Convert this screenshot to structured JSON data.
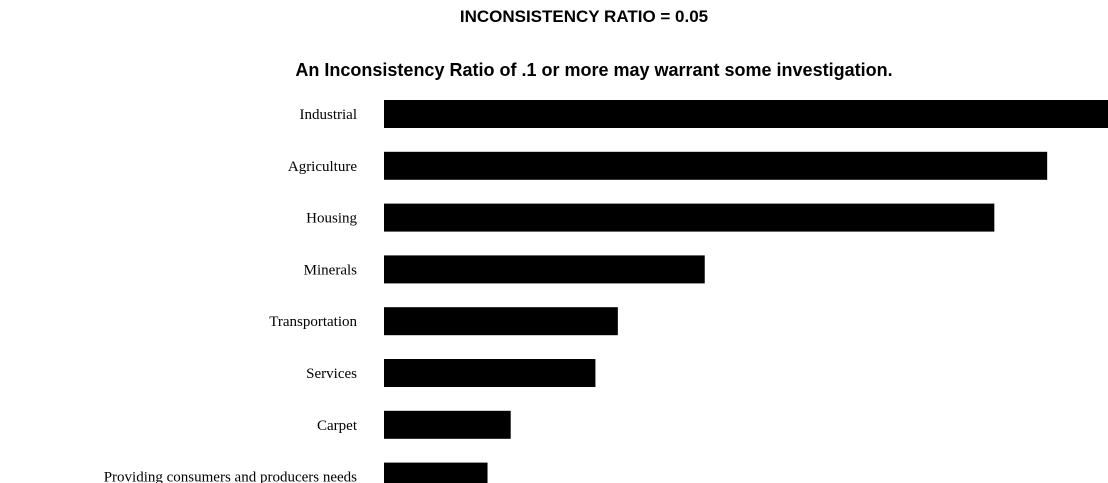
{
  "header": {
    "ratio_title": "INCONSISTENCY RATIO = 0.05",
    "note": "An Inconsistency Ratio of .1 or more may warrant some investigation."
  },
  "colors": {
    "bar": "#000000",
    "background": "#ffffff",
    "text": "#000000"
  },
  "chart_data": {
    "type": "bar",
    "orientation": "horizontal",
    "title": "",
    "xlabel": "",
    "ylabel": "",
    "categories": [
      "Industrial",
      "Agriculture",
      "Housing",
      "Minerals",
      "Transportation",
      "Services",
      "Carpet",
      "Providing consumers and producers needs"
    ],
    "values": [
      1.0,
      0.916,
      0.843,
      0.443,
      0.323,
      0.292,
      0.175,
      0.143
    ],
    "xlim": [
      0,
      1.0
    ],
    "grid": false,
    "legend": false
  }
}
